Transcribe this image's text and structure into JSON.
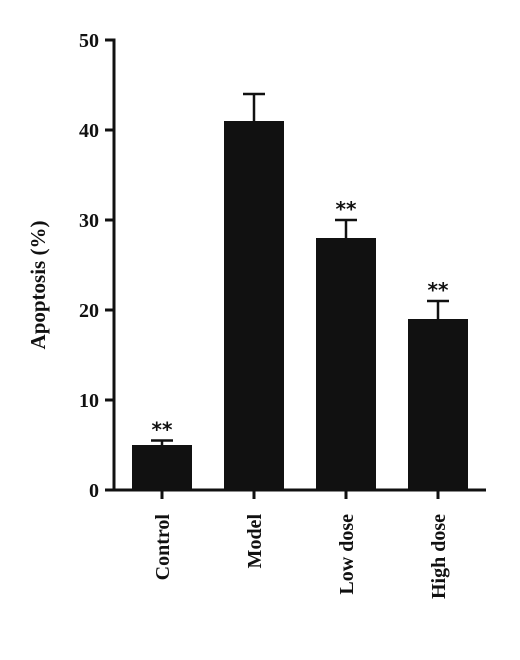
{
  "chart_data": {
    "type": "bar",
    "ylabel": "Apoptosis (%)",
    "ylim": [
      0,
      50
    ],
    "yticks": [
      0,
      10,
      20,
      30,
      40,
      50
    ],
    "categories": [
      "Control",
      "Model",
      "Low dose",
      "High dose"
    ],
    "values": [
      5,
      41,
      28,
      19
    ],
    "errors": [
      0.5,
      3,
      2,
      2
    ],
    "annotations": [
      "**",
      "",
      "**",
      "**"
    ],
    "bar_color": "#111111",
    "grid": false
  }
}
